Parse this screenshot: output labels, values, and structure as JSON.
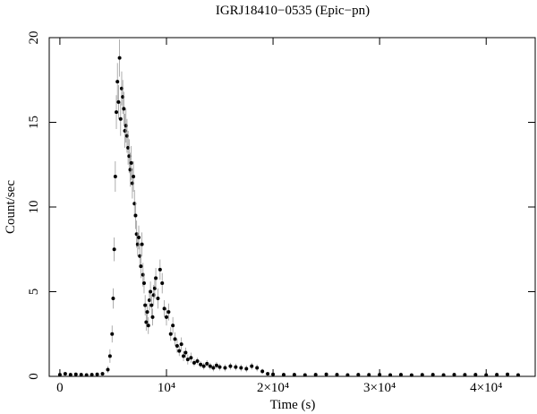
{
  "chart_data": {
    "type": "scatter",
    "title": "IGRJ18410−0535 (Epic−pn)",
    "x_label": "Time (s)",
    "y_label": "Count/sec",
    "xlim": [
      -1000,
      44600
    ],
    "ylim": [
      0,
      20
    ],
    "xticks": [
      0,
      {
        "value": 10000,
        "label": "10⁴"
      },
      {
        "value": 20000,
        "label": "2×10⁴"
      },
      {
        "value": 30000,
        "label": "3×10⁴"
      },
      {
        "value": 40000,
        "label": "4×10⁴"
      }
    ],
    "yticks": [
      0,
      5,
      10,
      15,
      20
    ],
    "color": "#000000",
    "error_color": "#999999",
    "x": [
      0,
      500,
      1000,
      1500,
      2000,
      2500,
      3000,
      3500,
      4000,
      4500,
      4700,
      4900,
      5000,
      5100,
      5200,
      5300,
      5400,
      5500,
      5600,
      5700,
      5800,
      5900,
      6000,
      6100,
      6200,
      6300,
      6400,
      6500,
      6600,
      6700,
      6800,
      6900,
      7000,
      7100,
      7200,
      7300,
      7400,
      7500,
      7600,
      7700,
      7800,
      7900,
      8000,
      8100,
      8200,
      8300,
      8400,
      8500,
      8600,
      8700,
      8800,
      8900,
      9000,
      9200,
      9400,
      9600,
      9800,
      10000,
      10200,
      10400,
      10600,
      10800,
      11000,
      11200,
      11400,
      11600,
      11800,
      12000,
      12300,
      12600,
      12900,
      13200,
      13500,
      13800,
      14100,
      14400,
      14700,
      15000,
      15500,
      16000,
      16500,
      17000,
      17500,
      18000,
      18500,
      19000,
      19500,
      20000,
      21000,
      22000,
      23000,
      24000,
      25000,
      26000,
      27000,
      28000,
      29000,
      30000,
      31000,
      32000,
      33000,
      34000,
      35000,
      36000,
      37000,
      38000,
      39000,
      40000,
      41000,
      42000,
      43000
    ],
    "values": [
      0.1,
      0.15,
      0.1,
      0.12,
      0.1,
      0.08,
      0.1,
      0.12,
      0.15,
      0.4,
      1.2,
      2.5,
      4.6,
      7.5,
      11.8,
      15.6,
      17.4,
      16.2,
      18.8,
      15.2,
      17.0,
      16.5,
      15.8,
      14.5,
      14.8,
      14.2,
      13.5,
      13.0,
      12.2,
      12.6,
      11.4,
      11.8,
      10.2,
      9.5,
      8.4,
      7.8,
      8.2,
      7.1,
      6.5,
      7.8,
      6.0,
      5.5,
      4.2,
      3.2,
      3.8,
      3.0,
      4.5,
      5.0,
      4.2,
      3.5,
      4.8,
      5.2,
      5.8,
      4.6,
      6.3,
      5.5,
      4.0,
      3.5,
      3.8,
      2.5,
      3.0,
      2.2,
      1.8,
      1.5,
      1.9,
      1.2,
      1.4,
      1.0,
      1.1,
      0.8,
      0.9,
      0.7,
      0.6,
      0.75,
      0.6,
      0.5,
      0.65,
      0.55,
      0.5,
      0.6,
      0.55,
      0.5,
      0.45,
      0.6,
      0.5,
      0.3,
      0.15,
      0.12,
      0.1,
      0.1,
      0.08,
      0.1,
      0.12,
      0.1,
      0.08,
      0.1,
      0.09,
      0.1,
      0.08,
      0.1,
      0.07,
      0.09,
      0.1,
      0.08,
      0.1,
      0.09,
      0.1,
      0.08,
      0.1,
      0.12,
      0.08
    ],
    "errors": [
      0.1,
      0.1,
      0.1,
      0.1,
      0.1,
      0.1,
      0.1,
      0.1,
      0.1,
      0.2,
      0.4,
      0.5,
      0.6,
      0.7,
      0.9,
      1.0,
      1.1,
      1.0,
      1.1,
      1.0,
      1.0,
      1.0,
      1.0,
      1.0,
      1.0,
      1.0,
      1.0,
      1.0,
      1.0,
      1.0,
      0.9,
      0.9,
      0.8,
      0.8,
      0.8,
      0.7,
      0.7,
      0.7,
      0.7,
      0.7,
      0.7,
      0.6,
      0.6,
      0.5,
      0.5,
      0.5,
      0.6,
      0.6,
      0.6,
      0.5,
      0.6,
      0.6,
      0.6,
      0.6,
      0.6,
      0.6,
      0.5,
      0.5,
      0.5,
      0.4,
      0.5,
      0.4,
      0.4,
      0.3,
      0.4,
      0.3,
      0.3,
      0.3,
      0.3,
      0.2,
      0.2,
      0.2,
      0.2,
      0.2,
      0.2,
      0.2,
      0.2,
      0.2,
      0.2,
      0.2,
      0.2,
      0.2,
      0.2,
      0.2,
      0.2,
      0.15,
      0.1,
      0.1,
      0.1,
      0.1,
      0.1,
      0.1,
      0.1,
      0.1,
      0.1,
      0.1,
      0.1,
      0.1,
      0.1,
      0.1,
      0.1,
      0.1,
      0.1,
      0.1,
      0.1,
      0.1,
      0.1,
      0.1,
      0.1,
      0.1,
      0.1
    ]
  }
}
